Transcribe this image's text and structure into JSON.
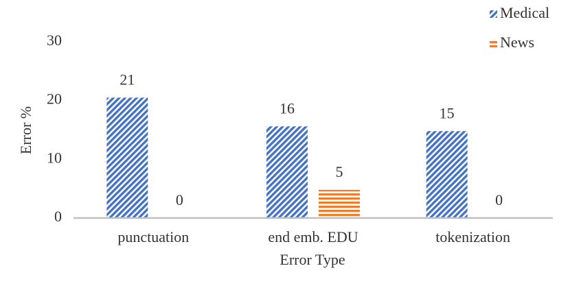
{
  "chart_data": {
    "type": "bar",
    "x_label": "Error Type",
    "y_label": "Error %",
    "categories": [
      "punctuation",
      "end emb. EDU",
      "tokenization"
    ],
    "series": [
      {
        "name": "Medical",
        "color": "#4472c4",
        "pattern": "diagonal",
        "values": [
          20.5,
          15.6,
          14.8
        ],
        "value_labels": [
          "21",
          "16",
          "15"
        ]
      },
      {
        "name": "News",
        "color": "#ed7d31",
        "pattern": "horizontal",
        "values": [
          0,
          4.8,
          0
        ],
        "value_labels": [
          "0",
          "5",
          "0"
        ]
      }
    ],
    "ylim": [
      0,
      30
    ],
    "yticks": [
      0,
      10,
      20,
      30
    ],
    "grid": false,
    "legend": "top-right"
  }
}
